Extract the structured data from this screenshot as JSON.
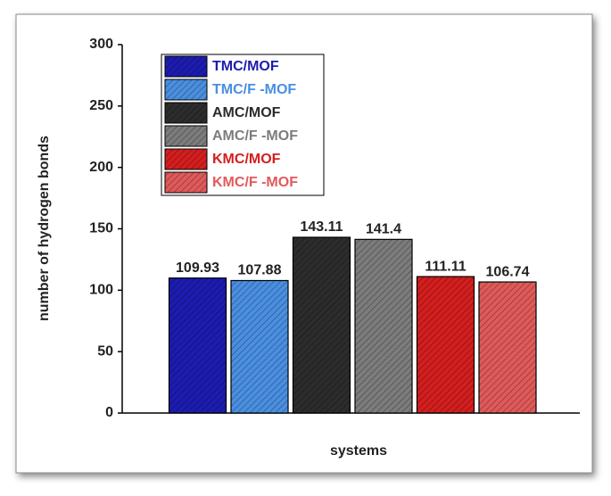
{
  "chart_data": {
    "type": "bar",
    "ylabel": "number of hydrogen bonds",
    "xlabel": "systems",
    "ylim": [
      0,
      300
    ],
    "yticks": [
      0,
      50,
      100,
      150,
      200,
      250,
      300
    ],
    "series": [
      {
        "name": "TMC/MOF",
        "color": "#1c1cb0",
        "values": [
          109.93
        ]
      },
      {
        "name": "TMC/F -MOF",
        "color": "#4a8fe0",
        "values": [
          107.88
        ]
      },
      {
        "name": "AMC/MOF",
        "color": "#2c2c2c",
        "values": [
          143.11
        ]
      },
      {
        "name": "AMC/F -MOF",
        "color": "#7c7c7c",
        "values": [
          141.4
        ]
      },
      {
        "name": "KMC/MOF",
        "color": "#d41e1e",
        "values": [
          111.11
        ]
      },
      {
        "name": "KMC/F -MOF",
        "color": "#e05a5a",
        "values": [
          106.74
        ]
      }
    ]
  }
}
